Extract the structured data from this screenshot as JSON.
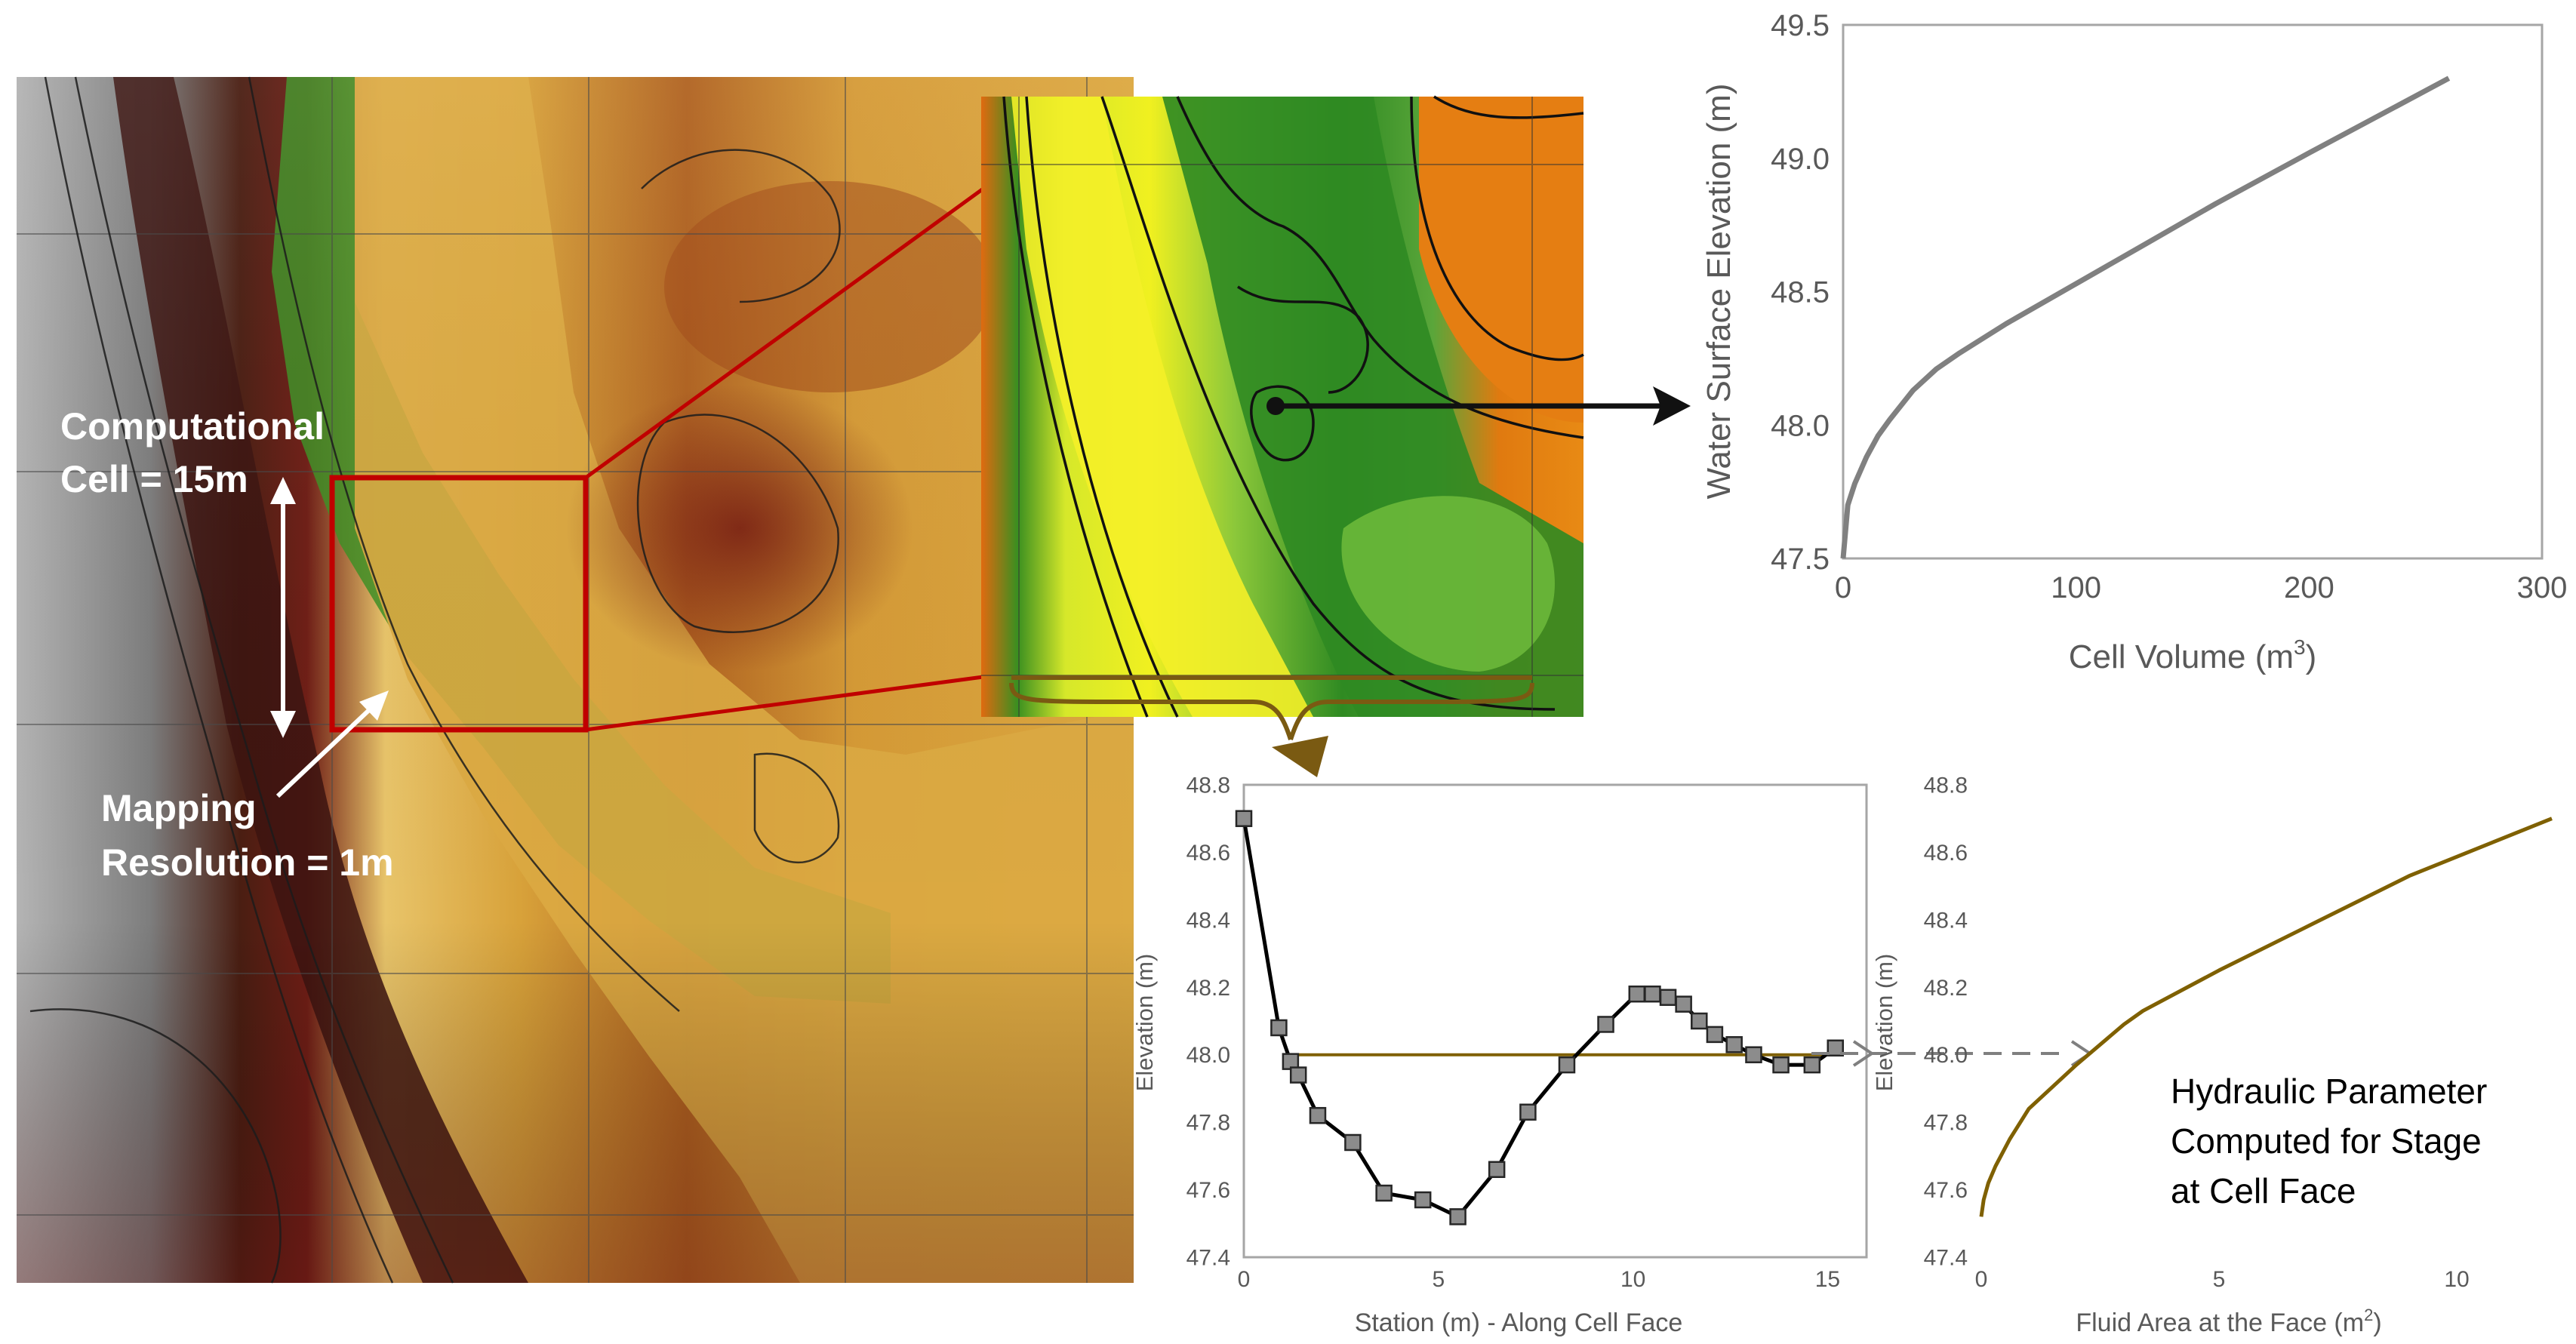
{
  "map": {
    "label_cell_line1": "Computational",
    "label_cell_line2": "Cell = 15m",
    "label_map_line1": "Mapping",
    "label_map_line2": "Resolution = 1m"
  },
  "colors": {
    "terrain_low": "#f2e24a",
    "terrain_mid": "#d4a62a",
    "terrain_high": "#8f3c17",
    "vegetation": "#3d8f24",
    "rock_gray": "#8a8a8a",
    "highlight_red": "#c00000",
    "face_line": "#7a5a12",
    "curve_gray": "#808080",
    "curve_brown": "#7f6000"
  },
  "annotation": {
    "text_line1": "Hydraulic Parameter",
    "text_line2": "Computed for Stage",
    "text_line3": "at Cell Face"
  },
  "chart_data": [
    {
      "type": "line",
      "title": "",
      "xlabel_main": "Cell Volume (m",
      "xlabel_sup": "3",
      "xlabel_end": ")",
      "ylabel": "Water Surface Elevation (m)",
      "xlim": [
        0,
        300
      ],
      "ylim": [
        47.5,
        49.5
      ],
      "xticks": [
        "0",
        "100",
        "200",
        "300"
      ],
      "yticks": [
        "47.5",
        "48.0",
        "48.5",
        "49.0",
        "49.5"
      ],
      "series": [
        {
          "x": [
            0,
            2,
            5,
            10,
            15,
            20,
            30,
            40,
            50,
            70,
            100,
            130,
            160,
            200,
            230,
            260
          ],
          "y": [
            47.5,
            47.7,
            47.78,
            47.88,
            47.96,
            48.02,
            48.13,
            48.21,
            48.27,
            48.38,
            48.53,
            48.68,
            48.83,
            49.02,
            49.16,
            49.3
          ]
        }
      ]
    },
    {
      "type": "line",
      "title": "",
      "xlabel": "Station (m) - Along Cell Face",
      "ylabel": "Elevation (m)",
      "xlim": [
        0,
        16
      ],
      "ylim": [
        47.4,
        48.8
      ],
      "xticks": [
        "0",
        "5",
        "10",
        "15"
      ],
      "yticks": [
        "47.4",
        "47.6",
        "47.8",
        "48.0",
        "48.2",
        "48.4",
        "48.6",
        "48.8"
      ],
      "series": [
        {
          "markers": true,
          "x": [
            0,
            0.9,
            1.2,
            1.4,
            1.9,
            2.8,
            3.6,
            4.6,
            5.5,
            6.5,
            7.3,
            8.3,
            9.3,
            10.1,
            10.5,
            10.9,
            11.3,
            11.7,
            12.1,
            12.6,
            13.1,
            13.8,
            14.6,
            15.2
          ],
          "y": [
            48.7,
            48.08,
            47.98,
            47.94,
            47.82,
            47.74,
            47.59,
            47.57,
            47.52,
            47.66,
            47.83,
            47.97,
            48.09,
            48.18,
            48.18,
            48.17,
            48.15,
            48.1,
            48.06,
            48.03,
            48.0,
            47.97,
            47.97,
            48.02
          ]
        },
        {
          "markers": false,
          "x": [
            1.2,
            14.9
          ],
          "y": [
            48.0,
            48.0
          ]
        }
      ]
    },
    {
      "type": "line",
      "title": "",
      "xlabel_main": "Fluid Area at the Face (m",
      "xlabel_sup": "2",
      "xlabel_end": ")",
      "ylabel": "Elevation (m)",
      "xlim": [
        0,
        12
      ],
      "ylim": [
        47.4,
        48.8
      ],
      "xticks": [
        "0",
        "5",
        "10"
      ],
      "yticks": [
        "47.4",
        "47.6",
        "47.8",
        "48.0",
        "48.2",
        "48.4",
        "48.6",
        "48.8"
      ],
      "series": [
        {
          "x": [
            0,
            0.05,
            0.15,
            0.3,
            0.6,
            1.0,
            2.0,
            3.0,
            3.4,
            5.0,
            7.0,
            9.0,
            12.0
          ],
          "y": [
            47.52,
            47.57,
            47.62,
            47.67,
            47.75,
            47.84,
            47.97,
            48.09,
            48.13,
            48.25,
            48.39,
            48.53,
            48.7
          ]
        }
      ]
    }
  ]
}
